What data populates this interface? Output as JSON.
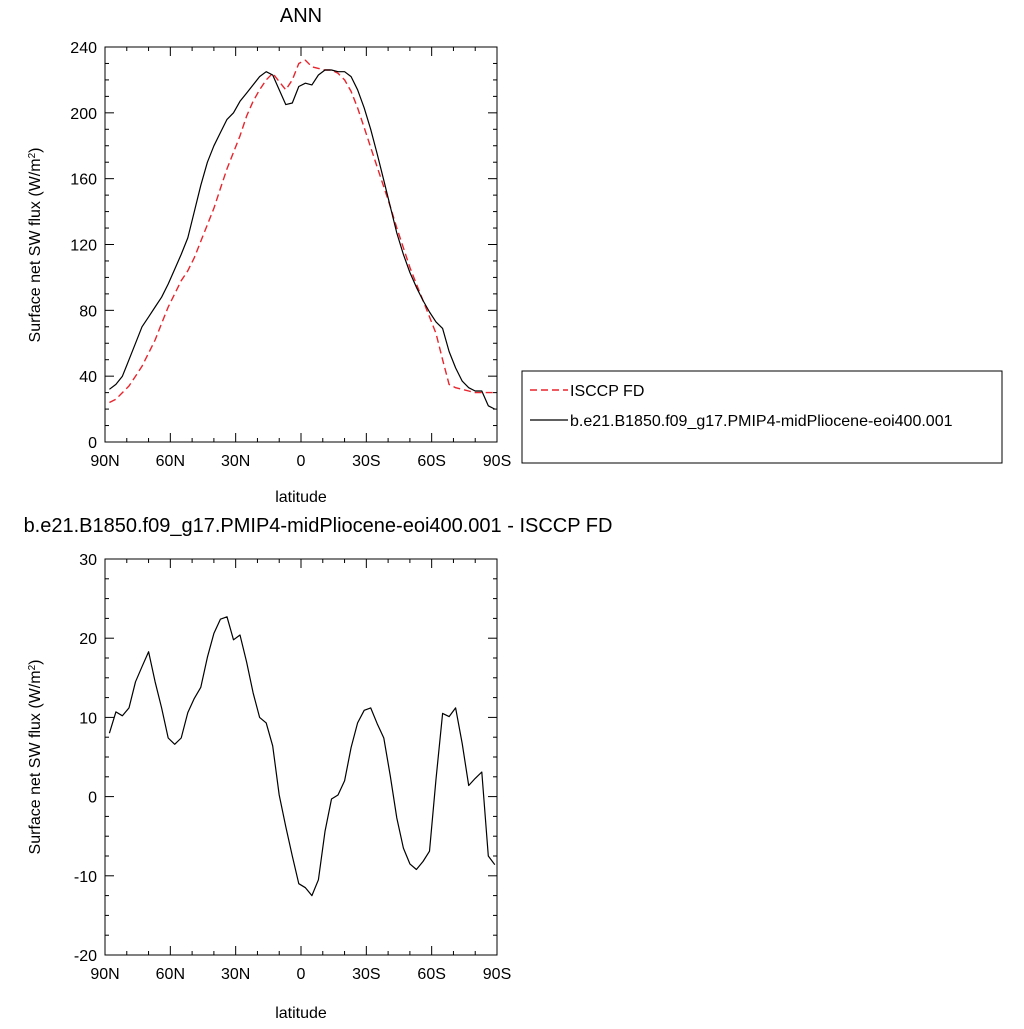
{
  "chart_data": [
    {
      "type": "line",
      "title": "ANN",
      "xlabel": "latitude",
      "ylabel_main": "Surface net SW flux (W/m",
      "ylabel_sup": "2",
      "ylabel_close": ")",
      "ylim": [
        0,
        240
      ],
      "yticks": [
        0,
        40,
        80,
        120,
        160,
        200,
        240
      ],
      "xlim": [
        -90,
        90
      ],
      "xticks": [
        {
          "value": -90,
          "label": "90N"
        },
        {
          "value": -60,
          "label": "60N"
        },
        {
          "value": -30,
          "label": "30N"
        },
        {
          "value": 0,
          "label": "0"
        },
        {
          "value": 30,
          "label": "30S"
        },
        {
          "value": 60,
          "label": "60S"
        },
        {
          "value": 90,
          "label": "90S"
        }
      ],
      "legend_position": "right",
      "series": [
        {
          "name": "ISCCP FD",
          "color": "#e8242c",
          "dash": true,
          "x": [
            -88,
            -85,
            -82,
            -79,
            -76,
            -73,
            -70,
            -67,
            -64,
            -61,
            -58,
            -55,
            -52,
            -49,
            -46,
            -43,
            -40,
            -37,
            -34,
            -31,
            -28,
            -25,
            -22,
            -19,
            -16,
            -13,
            -10,
            -7,
            -4,
            -1,
            2,
            5,
            8,
            11,
            14,
            17,
            20,
            23,
            26,
            29,
            32,
            35,
            38,
            41,
            44,
            47,
            50,
            53,
            56,
            59,
            62,
            65,
            68,
            71,
            74,
            77,
            80,
            83,
            86,
            89
          ],
          "values": [
            24,
            26,
            30,
            34,
            40,
            46,
            54,
            62,
            72,
            82,
            90,
            98,
            104,
            112,
            122,
            132,
            142,
            154,
            166,
            176,
            186,
            198,
            207,
            214,
            220,
            224,
            219,
            214,
            220,
            230,
            232,
            228,
            227,
            226,
            226,
            224,
            220,
            213,
            203,
            191,
            179,
            167,
            155,
            143,
            130,
            118,
            106,
            96,
            86,
            76,
            66,
            50,
            35,
            33,
            32,
            31,
            30,
            30,
            30,
            30
          ]
        },
        {
          "name": "b.e21.B1850.f09_g17.PMIP4-midPliocene-eoi400.001",
          "color": "#000000",
          "dash": false,
          "x": [
            -88,
            -85,
            -82,
            -79,
            -76,
            -73,
            -70,
            -67,
            -64,
            -61,
            -58,
            -55,
            -52,
            -49,
            -46,
            -43,
            -40,
            -37,
            -34,
            -31,
            -28,
            -25,
            -22,
            -19,
            -16,
            -13,
            -10,
            -7,
            -4,
            -1,
            2,
            5,
            8,
            11,
            14,
            17,
            20,
            23,
            26,
            29,
            32,
            35,
            38,
            41,
            44,
            47,
            50,
            53,
            56,
            59,
            62,
            65,
            68,
            71,
            74,
            77,
            80,
            83,
            86,
            89
          ],
          "values": [
            32,
            35,
            40,
            50,
            60,
            70,
            76,
            82,
            88,
            96,
            105,
            114,
            124,
            140,
            156,
            170,
            180,
            188,
            196,
            200,
            207,
            212,
            217,
            222,
            225,
            223,
            214,
            205,
            206,
            216,
            218,
            217,
            223,
            226,
            226,
            225,
            225,
            222,
            214,
            203,
            190,
            175,
            159,
            143,
            127,
            114,
            103,
            94,
            86,
            79,
            73,
            69,
            55,
            45,
            37,
            33,
            31,
            31,
            22,
            20
          ]
        }
      ]
    },
    {
      "type": "line",
      "title": "b.e21.B1850.f09_g17.PMIP4-midPliocene-eoi400.001 - ISCCP FD",
      "xlabel": "latitude",
      "ylabel_main": "Surface net SW flux (W/m",
      "ylabel_sup": "2",
      "ylabel_close": ")",
      "ylim": [
        -20,
        30
      ],
      "yticks": [
        -20,
        -10,
        0,
        10,
        20,
        30
      ],
      "xlim": [
        -90,
        90
      ],
      "xticks": [
        {
          "value": -90,
          "label": "90N"
        },
        {
          "value": -60,
          "label": "60N"
        },
        {
          "value": -30,
          "label": "30N"
        },
        {
          "value": 0,
          "label": "0"
        },
        {
          "value": 30,
          "label": "30S"
        },
        {
          "value": 60,
          "label": "60S"
        },
        {
          "value": 90,
          "label": "90S"
        }
      ],
      "series": [
        {
          "name": "",
          "color": "#000000",
          "dash": false,
          "x": [
            -88,
            -85,
            -82,
            -79,
            -76,
            -73,
            -70,
            -67,
            -64,
            -61,
            -58,
            -55,
            -52,
            -49,
            -46,
            -43,
            -40,
            -37,
            -34,
            -31,
            -28,
            -25,
            -22,
            -19,
            -16,
            -13,
            -10,
            -7,
            -4,
            -1,
            2,
            5,
            8,
            11,
            14,
            17,
            20,
            23,
            26,
            29,
            32,
            35,
            38,
            41,
            44,
            47,
            50,
            53,
            56,
            59,
            62,
            65,
            68,
            71,
            74,
            77,
            80,
            83,
            86,
            89
          ],
          "values": [
            8,
            10.7,
            10.2,
            11.2,
            14.5,
            16.4,
            18.3,
            14.5,
            11.2,
            7.4,
            6.6,
            7.4,
            10.6,
            12.4,
            13.8,
            17.6,
            20.6,
            22.4,
            22.7,
            19.8,
            20.4,
            17.0,
            13.1,
            10.0,
            9.3,
            6.4,
            0.2,
            -3.8,
            -7.5,
            -11,
            -11.5,
            -12.5,
            -10.5,
            -4.4,
            -0.3,
            0.2,
            2.0,
            6.2,
            9.3,
            10.9,
            11.2,
            9.2,
            7.4,
            2.6,
            -2.7,
            -6.5,
            -8.5,
            -9.2,
            -8.2,
            -6.9,
            2.2,
            10.5,
            10.1,
            11.2,
            6.7,
            1.4,
            2.3,
            3.1,
            -7.5,
            -8.6
          ]
        }
      ]
    }
  ]
}
